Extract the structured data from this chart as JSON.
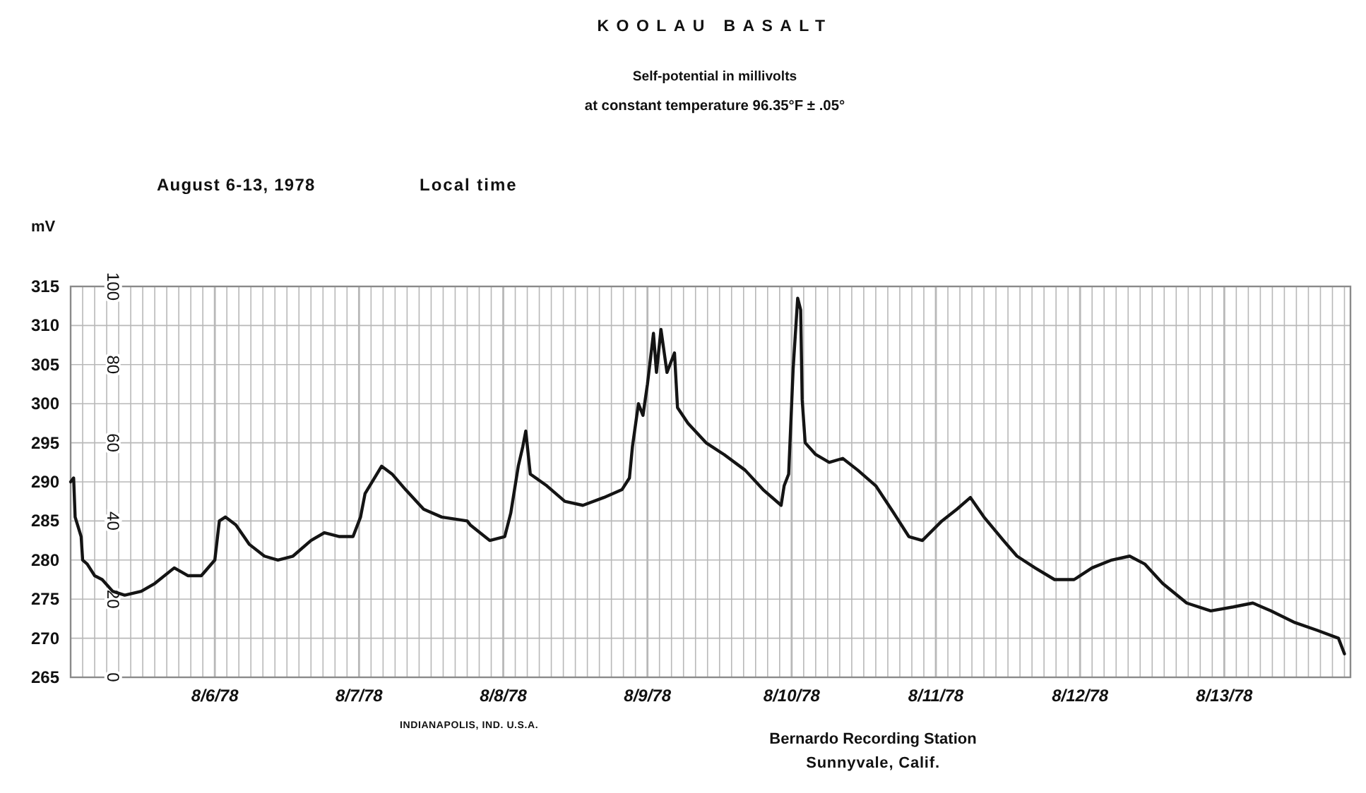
{
  "chart_data": {
    "type": "line",
    "title": "KOOLAU BASALT",
    "subtitle": "Self-potential in millivolts\nat constant temperature 96.35°F ± .05°",
    "ylabel": "mV",
    "annotations": [
      "August 6-13, 1978",
      "Local time",
      "INDIANAPOLIS, IND. U.S.A.",
      "Bernardo Recording Station",
      "Sunnyvale, Calif."
    ],
    "color": "#141414",
    "x": [
      "1978-08-05T12:00",
      "1978-08-05T12:30",
      "1978-08-05T12:45",
      "1978-08-05T13:45",
      "1978-08-05T14:00",
      "1978-08-05T14:45",
      "1978-08-05T16:00",
      "1978-08-05T17:15",
      "1978-08-05T19:00",
      "1978-08-05T21:00",
      "1978-08-05T23:45",
      "1978-08-06T02:00",
      "1978-08-06T05:15",
      "1978-08-06T07:30",
      "1978-08-06T09:45",
      "1978-08-06T12:00",
      "1978-08-06T12:45",
      "1978-08-06T13:45",
      "1978-08-06T15:30",
      "1978-08-06T17:45",
      "1978-08-06T20:15",
      "1978-08-06T22:30",
      "1978-08-07T01:00",
      "1978-08-07T04:00",
      "1978-08-07T06:15",
      "1978-08-07T08:45",
      "1978-08-07T11:00",
      "1978-08-07T12:15",
      "1978-08-07T13:00",
      "1978-08-07T15:45",
      "1978-08-07T17:30",
      "1978-08-07T19:45",
      "1978-08-07T22:45",
      "1978-08-08T01:45",
      "1978-08-08T06:00",
      "1978-08-08T06:30",
      "1978-08-08T09:45",
      "1978-08-08T12:15",
      "1978-08-08T13:15",
      "1978-08-08T14:30",
      "1978-08-08T15:15",
      "1978-08-08T15:45",
      "1978-08-08T16:30",
      "1978-08-08T19:15",
      "1978-08-08T22:15",
      "1978-08-09T01:15",
      "1978-08-09T04:45",
      "1978-08-09T07:45",
      "1978-08-09T09:00",
      "1978-08-09T09:30",
      "1978-08-09T10:30",
      "1978-08-09T11:15",
      "1978-08-09T12:00",
      "1978-08-09T13:00",
      "1978-08-09T13:30",
      "1978-08-09T14:15",
      "1978-08-09T15:15",
      "1978-08-09T16:30",
      "1978-08-09T17:00",
      "1978-08-09T18:45",
      "1978-08-09T21:45",
      "1978-08-10T00:45",
      "1978-08-10T04:15",
      "1978-08-10T07:15",
      "1978-08-10T10:15",
      "1978-08-10T10:45",
      "1978-08-10T11:30",
      "1978-08-10T12:15",
      "1978-08-10T13:00",
      "1978-08-10T13:30",
      "1978-08-10T13:45",
      "1978-08-10T14:15",
      "1978-08-10T16:00",
      "1978-08-10T18:15",
      "1978-08-10T20:30",
      "1978-08-10T23:00",
      "1978-08-11T02:00",
      "1978-08-11T05:00",
      "1978-08-11T07:30",
      "1978-08-11T09:45",
      "1978-08-11T13:00",
      "1978-08-11T15:30",
      "1978-08-11T17:45",
      "1978-08-11T20:00",
      "1978-08-11T23:15",
      "1978-08-12T01:30",
      "1978-08-12T04:30",
      "1978-08-12T07:45",
      "1978-08-12T11:00",
      "1978-08-12T14:00",
      "1978-08-12T17:15",
      "1978-08-12T20:15",
      "1978-08-12T22:45",
      "1978-08-13T01:45",
      "1978-08-13T05:45",
      "1978-08-13T09:45",
      "1978-08-13T13:30",
      "1978-08-13T16:45",
      "1978-08-13T19:45",
      "1978-08-13T23:45",
      "1978-08-14T03:30",
      "1978-08-14T07:00",
      "1978-08-14T08:00"
    ],
    "values": [
      290,
      290.5,
      285.5,
      283,
      280,
      279.5,
      278,
      277.5,
      276,
      275.5,
      276,
      277,
      279,
      278,
      278,
      280,
      285,
      285.5,
      284.5,
      282,
      280.5,
      280,
      280.5,
      282.5,
      283.5,
      283,
      283,
      285.5,
      288.5,
      292,
      291,
      289,
      286.5,
      285.5,
      285,
      284.5,
      282.5,
      283,
      286,
      292,
      294.5,
      296.5,
      291,
      289.5,
      287.5,
      287,
      288,
      289,
      290.5,
      294.5,
      300,
      298.5,
      302.5,
      309,
      304,
      309.5,
      304,
      306.5,
      299.5,
      297.5,
      295,
      293.5,
      291.5,
      289,
      287,
      289.5,
      291,
      304.5,
      313.5,
      312,
      300.5,
      295,
      293.5,
      292.5,
      293,
      291.5,
      289.5,
      286,
      283,
      282.5,
      285,
      286.5,
      288,
      285.5,
      282.5,
      280.5,
      279,
      277.5,
      277.5,
      279,
      280,
      280.5,
      279.5,
      277,
      274.5,
      273.5,
      274,
      274.5,
      273.5,
      272,
      271,
      270,
      268
    ],
    "xlim": [
      "1978-08-05T12:00",
      "1978-08-14T09:00"
    ],
    "ylim": [
      265,
      315
    ],
    "yticks": [
      265,
      270,
      275,
      280,
      285,
      290,
      295,
      300,
      305,
      310,
      315
    ],
    "y2lim": [
      0,
      100
    ],
    "y2ticks": [
      0,
      20,
      40,
      60,
      80,
      100
    ],
    "xticks": [
      {
        "value": "1978-08-05T14:00",
        "label": null
      },
      {
        "value": "1978-08-05T16:00",
        "label": null
      },
      {
        "value": "1978-08-05T18:00",
        "label": null
      },
      {
        "value": "1978-08-05T20:00",
        "label": null
      },
      {
        "value": "1978-08-05T22:00",
        "label": null
      },
      {
        "value": "1978-08-06T00:00",
        "label": null
      },
      {
        "value": "1978-08-06T02:00",
        "label": null
      },
      {
        "value": "1978-08-06T04:00",
        "label": null
      },
      {
        "value": "1978-08-06T06:00",
        "label": null
      },
      {
        "value": "1978-08-06T08:00",
        "label": null
      },
      {
        "value": "1978-08-06T10:00",
        "label": null
      },
      {
        "value": "1978-08-06T12:00",
        "label": "8/6/78"
      },
      {
        "value": "1978-08-06T14:00",
        "label": null
      },
      {
        "value": "1978-08-06T16:00",
        "label": null
      },
      {
        "value": "1978-08-06T18:00",
        "label": null
      },
      {
        "value": "1978-08-06T20:00",
        "label": null
      },
      {
        "value": "1978-08-06T22:00",
        "label": null
      },
      {
        "value": "1978-08-07T00:00",
        "label": null
      },
      {
        "value": "1978-08-07T02:00",
        "label": null
      },
      {
        "value": "1978-08-07T04:00",
        "label": null
      },
      {
        "value": "1978-08-07T06:00",
        "label": null
      },
      {
        "value": "1978-08-07T08:00",
        "label": null
      },
      {
        "value": "1978-08-07T10:00",
        "label": null
      },
      {
        "value": "1978-08-07T12:00",
        "label": "8/7/78"
      },
      {
        "value": "1978-08-07T14:00",
        "label": null
      },
      {
        "value": "1978-08-07T16:00",
        "label": null
      },
      {
        "value": "1978-08-07T18:00",
        "label": null
      },
      {
        "value": "1978-08-07T20:00",
        "label": null
      },
      {
        "value": "1978-08-07T22:00",
        "label": null
      },
      {
        "value": "1978-08-08T00:00",
        "label": null
      },
      {
        "value": "1978-08-08T02:00",
        "label": null
      },
      {
        "value": "1978-08-08T04:00",
        "label": null
      },
      {
        "value": "1978-08-08T06:00",
        "label": null
      },
      {
        "value": "1978-08-08T08:00",
        "label": null
      },
      {
        "value": "1978-08-08T10:00",
        "label": null
      },
      {
        "value": "1978-08-08T12:00",
        "label": "8/8/78"
      },
      {
        "value": "1978-08-08T14:00",
        "label": null
      },
      {
        "value": "1978-08-08T16:00",
        "label": null
      },
      {
        "value": "1978-08-08T18:00",
        "label": null
      },
      {
        "value": "1978-08-08T20:00",
        "label": null
      },
      {
        "value": "1978-08-08T22:00",
        "label": null
      },
      {
        "value": "1978-08-09T00:00",
        "label": null
      },
      {
        "value": "1978-08-09T02:00",
        "label": null
      },
      {
        "value": "1978-08-09T04:00",
        "label": null
      },
      {
        "value": "1978-08-09T06:00",
        "label": null
      },
      {
        "value": "1978-08-09T08:00",
        "label": null
      },
      {
        "value": "1978-08-09T10:00",
        "label": null
      },
      {
        "value": "1978-08-09T12:00",
        "label": "8/9/78"
      },
      {
        "value": "1978-08-09T14:00",
        "label": null
      },
      {
        "value": "1978-08-09T16:00",
        "label": null
      },
      {
        "value": "1978-08-09T18:00",
        "label": null
      },
      {
        "value": "1978-08-09T20:00",
        "label": null
      },
      {
        "value": "1978-08-09T22:00",
        "label": null
      },
      {
        "value": "1978-08-10T00:00",
        "label": null
      },
      {
        "value": "1978-08-10T02:00",
        "label": null
      },
      {
        "value": "1978-08-10T04:00",
        "label": null
      },
      {
        "value": "1978-08-10T06:00",
        "label": null
      },
      {
        "value": "1978-08-10T08:00",
        "label": null
      },
      {
        "value": "1978-08-10T10:00",
        "label": null
      },
      {
        "value": "1978-08-10T12:00",
        "label": "8/10/78"
      },
      {
        "value": "1978-08-10T14:00",
        "label": null
      },
      {
        "value": "1978-08-10T16:00",
        "label": null
      },
      {
        "value": "1978-08-10T18:00",
        "label": null
      },
      {
        "value": "1978-08-10T20:00",
        "label": null
      },
      {
        "value": "1978-08-10T22:00",
        "label": null
      },
      {
        "value": "1978-08-11T00:00",
        "label": null
      },
      {
        "value": "1978-08-11T02:00",
        "label": null
      },
      {
        "value": "1978-08-11T04:00",
        "label": null
      },
      {
        "value": "1978-08-11T06:00",
        "label": null
      },
      {
        "value": "1978-08-11T08:00",
        "label": null
      },
      {
        "value": "1978-08-11T10:00",
        "label": null
      },
      {
        "value": "1978-08-11T12:00",
        "label": "8/11/78"
      },
      {
        "value": "1978-08-11T14:00",
        "label": null
      },
      {
        "value": "1978-08-11T16:00",
        "label": null
      },
      {
        "value": "1978-08-11T18:00",
        "label": null
      },
      {
        "value": "1978-08-11T20:00",
        "label": null
      },
      {
        "value": "1978-08-11T22:00",
        "label": null
      },
      {
        "value": "1978-08-12T00:00",
        "label": null
      },
      {
        "value": "1978-08-12T02:00",
        "label": null
      },
      {
        "value": "1978-08-12T04:00",
        "label": null
      },
      {
        "value": "1978-08-12T06:00",
        "label": null
      },
      {
        "value": "1978-08-12T08:00",
        "label": null
      },
      {
        "value": "1978-08-12T10:00",
        "label": null
      },
      {
        "value": "1978-08-12T12:00",
        "label": "8/12/78"
      },
      {
        "value": "1978-08-12T14:00",
        "label": null
      },
      {
        "value": "1978-08-12T16:00",
        "label": null
      },
      {
        "value": "1978-08-12T18:00",
        "label": null
      },
      {
        "value": "1978-08-12T20:00",
        "label": null
      },
      {
        "value": "1978-08-12T22:00",
        "label": null
      },
      {
        "value": "1978-08-13T00:00",
        "label": null
      },
      {
        "value": "1978-08-13T02:00",
        "label": null
      },
      {
        "value": "1978-08-13T04:00",
        "label": null
      },
      {
        "value": "1978-08-13T06:00",
        "label": null
      },
      {
        "value": "1978-08-13T08:00",
        "label": null
      },
      {
        "value": "1978-08-13T10:00",
        "label": null
      },
      {
        "value": "1978-08-13T12:00",
        "label": "8/13/78"
      },
      {
        "value": "1978-08-13T14:00",
        "label": null
      },
      {
        "value": "1978-08-13T16:00",
        "label": null
      },
      {
        "value": "1978-08-13T18:00",
        "label": null
      },
      {
        "value": "1978-08-13T20:00",
        "label": null
      },
      {
        "value": "1978-08-13T22:00",
        "label": null
      },
      {
        "value": "1978-08-14T00:00",
        "label": null
      },
      {
        "value": "1978-08-14T02:00",
        "label": null
      },
      {
        "value": "1978-08-14T04:00",
        "label": null
      },
      {
        "value": "1978-08-14T06:00",
        "label": null
      },
      {
        "value": "1978-08-14T08:00",
        "label": null
      }
    ],
    "grid": true
  }
}
